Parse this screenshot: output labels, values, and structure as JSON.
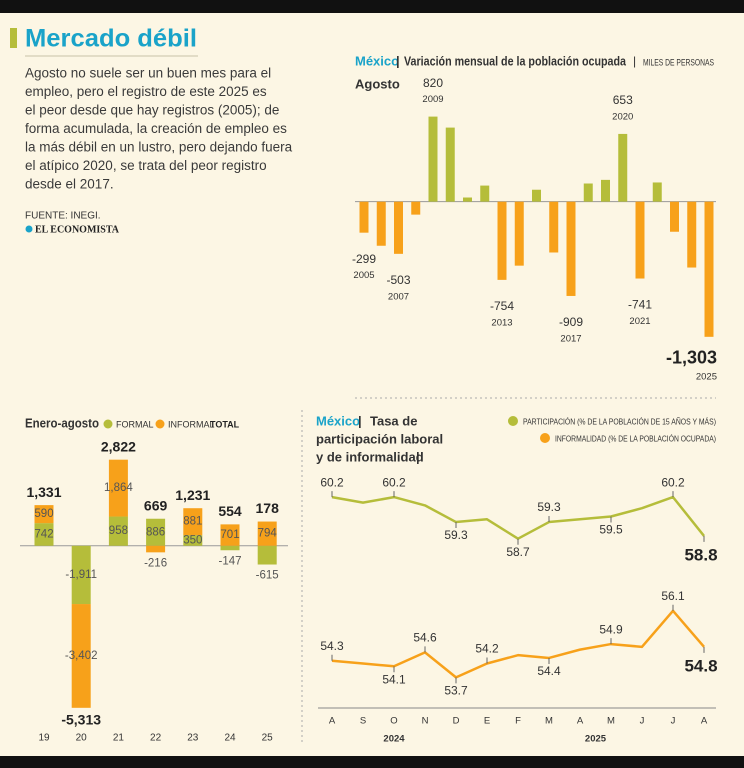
{
  "header": {
    "title": "Mercado débil",
    "body_lines": [
      "Agosto no suele ser un buen mes para el",
      "empleo, pero el registro de este 2025 es",
      "el peor desde que hay registros (2005); de",
      "forma acumulada, la creación de empleo es",
      "la más débil en un lustro, pero dejando fuera",
      "el atípico 2020, se trata del peor registro",
      "desde el 2017."
    ],
    "source": "FUENTE: INEGI.",
    "logo": "EL ECONOMISTA"
  },
  "chart_data": [
    {
      "type": "bar",
      "region": "México",
      "title": "Variación mensual de la población ocupada",
      "unit": "MILES DE PERSONAS",
      "subtitle": "Agosto",
      "categories": [
        "2005",
        null,
        "2007",
        null,
        "2009",
        null,
        null,
        null,
        "2013",
        null,
        null,
        null,
        "2017",
        null,
        null,
        "2020",
        "2021",
        null,
        null,
        null,
        "2025"
      ],
      "values": [
        -299,
        -425,
        -503,
        -125,
        820,
        714,
        40,
        155,
        -754,
        -617,
        115,
        -490,
        -909,
        175,
        210,
        653,
        -741,
        185,
        -290,
        -635,
        -1303
      ],
      "value_labels": [
        "-299",
        null,
        "-503",
        null,
        "820",
        null,
        null,
        null,
        "-754",
        null,
        null,
        null,
        "-909",
        null,
        null,
        "653",
        "-741",
        null,
        null,
        null,
        "-1,303"
      ],
      "colors": {
        "positive": "#b5bd3a",
        "negative": "#f7a11a"
      },
      "ylim": [
        -1430,
        980
      ]
    },
    {
      "type": "stacked_bar",
      "title": "Enero-agosto",
      "categories": [
        "19",
        "20",
        "21",
        "22",
        "23",
        "24",
        "25"
      ],
      "series": [
        {
          "name": "FORMAL",
          "color": "#b5bd3a",
          "values": [
            742,
            -1911,
            958,
            886,
            350,
            -147,
            -615
          ],
          "value_labels": [
            "742",
            "-1,911",
            "958",
            "886",
            "350",
            "-147",
            "-615"
          ]
        },
        {
          "name": "INFORMAL",
          "color": "#f7a11a",
          "values": [
            590,
            -3402,
            1864,
            -216,
            881,
            701,
            794
          ],
          "value_labels": [
            "590",
            "-3,402",
            "1,864",
            "-216",
            "881",
            "701",
            "794"
          ]
        }
      ],
      "total": {
        "name": "TOTAL",
        "values": [
          1331,
          -5313,
          2822,
          669,
          1231,
          554,
          178
        ],
        "value_labels": [
          "1,331",
          "-5,313",
          "2,822",
          "669",
          "1,231",
          "554",
          "178"
        ]
      },
      "ylim": [
        -5450,
        3500
      ]
    },
    {
      "type": "line",
      "region": "México",
      "title_lines": [
        "Tasa de",
        "participación laboral",
        "y de informalidad"
      ],
      "categories": [
        "A",
        "S",
        "O",
        "N",
        "D",
        "E",
        "F",
        "M",
        "A",
        "M",
        "J",
        "J",
        "A"
      ],
      "years": [
        "2024",
        "2025"
      ],
      "series": [
        {
          "name": "PARTICIPACIÓN (% DE LA POBLACIÓN DE 15 AÑOS Y MÁS)",
          "color": "#b5bd3a",
          "values": [
            60.2,
            60.0,
            60.2,
            59.9,
            59.3,
            59.4,
            58.7,
            59.3,
            59.4,
            59.5,
            59.8,
            60.2,
            58.8
          ],
          "value_labels": [
            "60.2",
            null,
            "60.2",
            null,
            "59.3",
            null,
            "58.7",
            "59.3",
            null,
            "59.5",
            null,
            "60.2",
            "58.8"
          ]
        },
        {
          "name": "INFORMALIDAD (% DE LA POBLACIÓN OCUPADA)",
          "color": "#f7a11a",
          "values": [
            54.3,
            54.2,
            54.1,
            54.6,
            53.7,
            54.2,
            54.5,
            54.4,
            54.7,
            54.9,
            54.8,
            56.1,
            54.8
          ],
          "value_labels": [
            "54.3",
            null,
            "54.1",
            "54.6",
            "53.7",
            "54.2",
            null,
            "54.4",
            null,
            "54.9",
            null,
            "56.1",
            "54.8"
          ]
        }
      ],
      "ylim": [
        53.1,
        60.6
      ]
    }
  ]
}
